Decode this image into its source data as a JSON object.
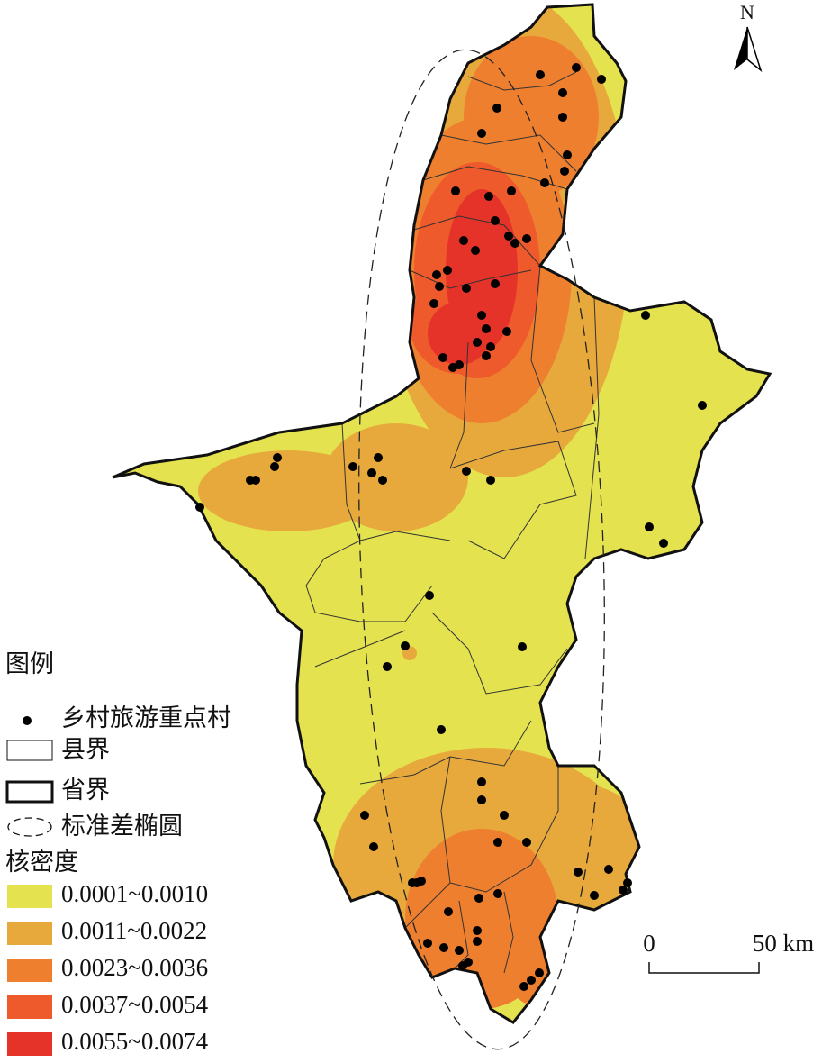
{
  "legend": {
    "title": "图例",
    "items": [
      "乡村旅游重点村",
      "县界",
      "省界",
      "标准差椭圆"
    ],
    "density_title": "核密度",
    "density_classes": [
      {
        "label": "0.0001~0.0010",
        "color": "#e4e24e"
      },
      {
        "label": "0.0011~0.0022",
        "color": "#e8a93c"
      },
      {
        "label": "0.0023~0.0036",
        "color": "#ee7f2f"
      },
      {
        "label": "0.0037~0.0054",
        "color": "#ee5a2b"
      },
      {
        "label": "0.0055~0.0074",
        "color": "#e6332a"
      }
    ]
  },
  "north": "N",
  "scale": {
    "start": "0",
    "end": "50 km"
  }
}
